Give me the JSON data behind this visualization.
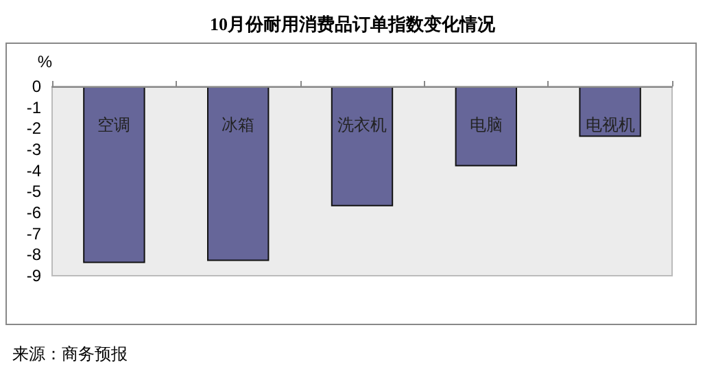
{
  "chart_data": {
    "type": "bar",
    "title": "10月份耐用消费品订单指数变化情况",
    "ylabel": "%",
    "categories": [
      "空调",
      "冰箱",
      "洗衣机",
      "电脑",
      "电视机"
    ],
    "values": [
      -8.4,
      -8.3,
      -5.7,
      -3.8,
      -2.4
    ],
    "color": "#666699",
    "ylim": [
      -9,
      0
    ],
    "yticks": [
      -9,
      -8,
      -7,
      -6,
      -5,
      -4,
      -3,
      -2,
      -1,
      0
    ],
    "grid": false,
    "annotations": [
      "来源：商务预报"
    ]
  }
}
